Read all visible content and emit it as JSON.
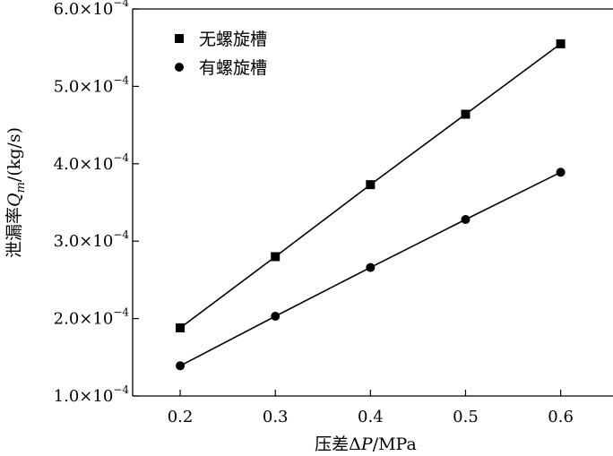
{
  "chart_data": {
    "type": "line",
    "x": [
      0.2,
      0.3,
      0.4,
      0.5,
      0.6
    ],
    "xlim": [
      0.15,
      0.655
    ],
    "ylim": [
      0.0001,
      0.0006
    ],
    "x_ticks": [
      0.2,
      0.3,
      0.4,
      0.5,
      0.6
    ],
    "y_ticks": [
      0.0001,
      0.0002,
      0.0003,
      0.0004,
      0.0005,
      0.0006
    ],
    "x_tick_labels": [
      "0.2",
      "0.3",
      "0.4",
      "0.5",
      "0.6"
    ],
    "y_tick_labels": [
      {
        "mantissa": "1.0",
        "times": "×",
        "base": "10",
        "exp": "−4"
      },
      {
        "mantissa": "2.0",
        "times": "×",
        "base": "10",
        "exp": "−4"
      },
      {
        "mantissa": "3.0",
        "times": "×",
        "base": "10",
        "exp": "−4"
      },
      {
        "mantissa": "4.0",
        "times": "×",
        "base": "10",
        "exp": "−4"
      },
      {
        "mantissa": "5.0",
        "times": "×",
        "base": "10",
        "exp": "−4"
      },
      {
        "mantissa": "6.0",
        "times": "×",
        "base": "10",
        "exp": "−4"
      }
    ],
    "xlabel": {
      "prefix": "压差Δ",
      "var": "P",
      "suffix": "/MPa"
    },
    "ylabel": {
      "prefix": "泄漏率",
      "var": "Q",
      "sub": "m",
      "suffix": "/(kg/s)"
    },
    "legend_position": "top-left",
    "grid": false,
    "series": [
      {
        "name": "无螺旋槽",
        "marker": "square",
        "color": "#000000",
        "values": [
          0.000188,
          0.00028,
          0.000373,
          0.000464,
          0.000555
        ]
      },
      {
        "name": "有螺旋槽",
        "marker": "circle",
        "color": "#000000",
        "values": [
          0.000139,
          0.000203,
          0.000266,
          0.000328,
          0.000389
        ]
      }
    ]
  }
}
